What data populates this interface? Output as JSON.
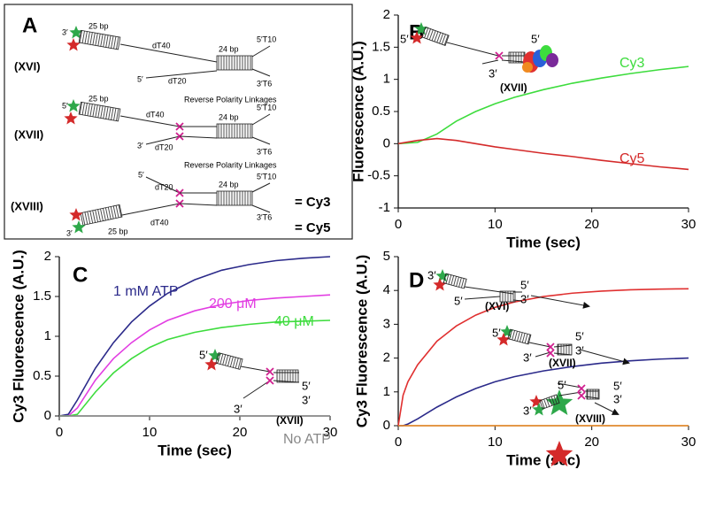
{
  "panel_a": {
    "letter": "A",
    "labels": [
      "3′",
      "25 bp",
      "dT40",
      "24 bp",
      "5′T10",
      "5′",
      "dT20",
      "3′T6",
      "(XVI)",
      "5′",
      "25 bp",
      "dT40",
      "Reverse Polarity Linkages",
      "24 bp",
      "5′T10",
      "3′",
      "dT20",
      "3′T6",
      "(XVII)",
      "5′",
      "dT20",
      "Reverse Polarity Linkages",
      "24 bp",
      "5′T10",
      "3′T6",
      "(XVIII)",
      "25 bp",
      "dT40",
      "3′"
    ],
    "legend": [
      "= Cy3",
      "= Cy5"
    ]
  },
  "chart_data": [
    {
      "type": "line",
      "panel": "B",
      "x_label": "Time (sec)",
      "y_label": "Fluorescence (A.U.)",
      "x": [
        0,
        2,
        4,
        6,
        8,
        10,
        12,
        15,
        18,
        21,
        24,
        27,
        30
      ],
      "series": [
        {
          "name": "Cy3",
          "color": "#3ddc3d",
          "values": [
            0,
            0.02,
            0.15,
            0.35,
            0.5,
            0.62,
            0.72,
            0.84,
            0.94,
            1.02,
            1.09,
            1.15,
            1.2
          ]
        },
        {
          "name": "Cy5",
          "color": "#d42a2a",
          "values": [
            0,
            0.05,
            0.08,
            0.05,
            0.0,
            -0.05,
            -0.09,
            -0.15,
            -0.2,
            -0.26,
            -0.31,
            -0.36,
            -0.4
          ]
        }
      ],
      "xlim": [
        0,
        30
      ],
      "xticks": [
        0,
        10,
        20,
        30
      ],
      "ylim": [
        -1,
        2
      ],
      "yticks": [
        -1,
        -0.5,
        0,
        0.5,
        1,
        1.5,
        2
      ],
      "inset": [
        "5′",
        "5′",
        "3′",
        "(XVII)"
      ]
    },
    {
      "type": "line",
      "panel": "C",
      "x_label": "Time (sec)",
      "y_label": "Cy3 Fluorescence (A.U.)",
      "x": [
        0,
        1,
        2,
        4,
        6,
        8,
        10,
        12,
        15,
        18,
        21,
        24,
        27,
        30
      ],
      "series": [
        {
          "name": "1 mM ATP",
          "color": "#2b2a8a",
          "values": [
            0,
            0.02,
            0.2,
            0.6,
            0.92,
            1.18,
            1.38,
            1.54,
            1.71,
            1.83,
            1.9,
            1.95,
            1.98,
            2.0
          ]
        },
        {
          "name": "200 μM",
          "color": "#e23ee2",
          "values": [
            0,
            0,
            0.1,
            0.45,
            0.72,
            0.92,
            1.08,
            1.2,
            1.32,
            1.4,
            1.45,
            1.48,
            1.5,
            1.52
          ]
        },
        {
          "name": "40 μM",
          "color": "#3ddc3d",
          "values": [
            0,
            0,
            0.02,
            0.3,
            0.54,
            0.72,
            0.86,
            0.96,
            1.05,
            1.11,
            1.15,
            1.18,
            1.19,
            1.2
          ]
        },
        {
          "name": "No ATP",
          "color": "#888888",
          "values": [
            0,
            0,
            0,
            0,
            0,
            0,
            0,
            0,
            0,
            0,
            0,
            0,
            0,
            0
          ]
        }
      ],
      "xlim": [
        0,
        30
      ],
      "xticks": [
        0,
        10,
        20,
        30
      ],
      "ylim": [
        0,
        2
      ],
      "yticks": [
        0,
        0.5,
        1,
        1.5,
        2
      ],
      "inset": [
        "5′",
        "5′",
        "3′",
        "3′",
        "(XVII)"
      ]
    },
    {
      "type": "line",
      "panel": "D",
      "x_label": "Time (sec)",
      "y_label": "Cy3 Fluorescence (A.U.)",
      "x": [
        0,
        0.5,
        1,
        2,
        4,
        6,
        8,
        10,
        12,
        15,
        18,
        21,
        24,
        27,
        30
      ],
      "series": [
        {
          "color": "#e03030",
          "values": [
            0,
            0.9,
            1.3,
            1.8,
            2.5,
            2.95,
            3.27,
            3.5,
            3.66,
            3.82,
            3.92,
            3.98,
            4.02,
            4.04,
            4.05
          ]
        },
        {
          "color": "#2b2a8a",
          "values": [
            0,
            0,
            0.05,
            0.2,
            0.55,
            0.85,
            1.1,
            1.3,
            1.45,
            1.62,
            1.75,
            1.85,
            1.92,
            1.97,
            2.0
          ]
        },
        {
          "color": "#f08a20",
          "values": [
            0,
            0,
            0,
            0,
            0,
            0,
            0,
            0,
            0,
            0,
            0,
            0,
            0,
            0,
            0
          ]
        }
      ],
      "xlim": [
        0,
        30
      ],
      "xticks": [
        0,
        10,
        20,
        30
      ],
      "ylim": [
        0,
        5
      ],
      "yticks": [
        0,
        1,
        2,
        3,
        4,
        5
      ],
      "inset": [
        "3′",
        "5′",
        "3′",
        "5′",
        "(XVI)",
        "5′",
        "5′",
        "3′",
        "3′",
        "(XVII)",
        "5′",
        "5′",
        "3′",
        "3′",
        "(XVIII)"
      ]
    }
  ]
}
